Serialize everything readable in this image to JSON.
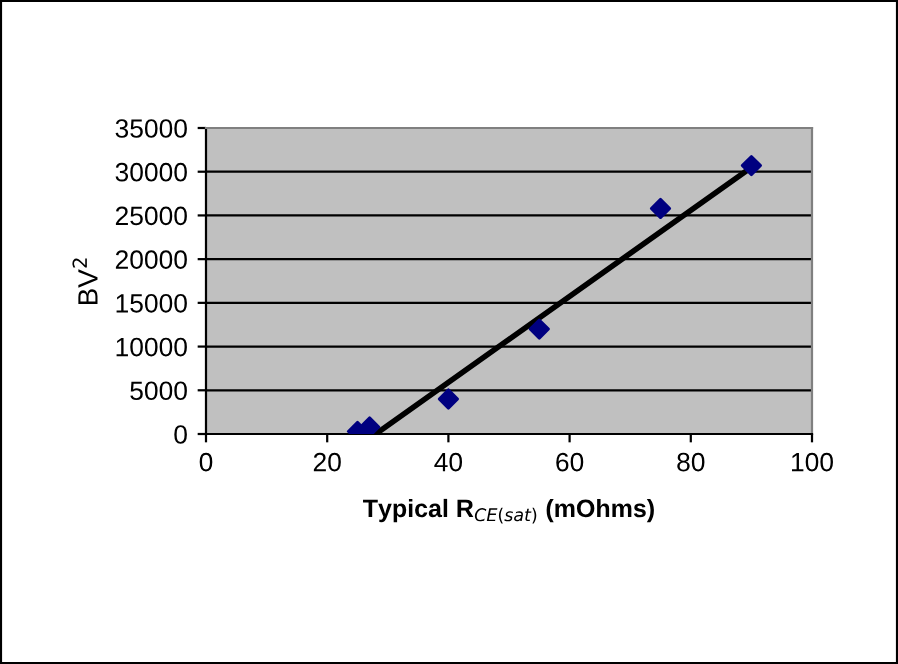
{
  "chart_data": {
    "type": "scatter",
    "xlabel": "Typical R$_{CE(sat)}$ (mOhms)",
    "ylabel": "BV$^{2}$",
    "series": [
      {
        "color": "#000080",
        "marker": "diamond",
        "x": [
          25,
          27,
          40,
          55,
          75,
          90
        ],
        "values": [
          300,
          800,
          4000,
          12000,
          25800,
          30700
        ]
      },
      {
        "type": "line",
        "color": "#000000",
        "marker": "none",
        "line_style": "solid",
        "x": [
          28,
          90
        ],
        "values": [
          0,
          30500
        ]
      }
    ],
    "xlim": [
      0,
      100
    ],
    "xticks": [
      0,
      20,
      40,
      60,
      80,
      100
    ],
    "ylim": [
      0,
      35000
    ],
    "yticks": [
      0,
      5000,
      10000,
      15000,
      20000,
      25000,
      30000,
      35000
    ],
    "grid": "y",
    "legend": false
  }
}
